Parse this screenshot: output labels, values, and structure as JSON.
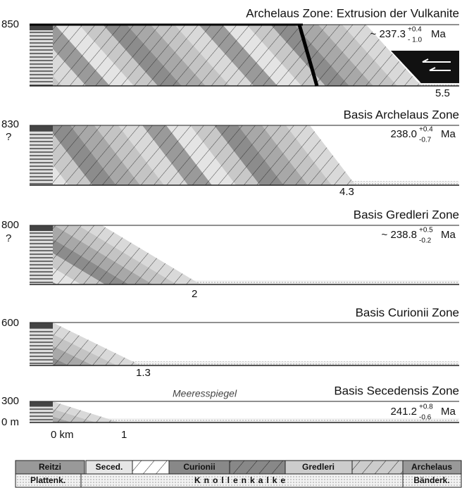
{
  "panels": [
    {
      "elevation": "850",
      "title": "Archelaus Zone: Extrusion der Vulkanite",
      "age": "~ 237.3",
      "age_plus": "+0.4",
      "age_minus": "- 1.0",
      "age_unit": "Ma",
      "distance": "5.5"
    },
    {
      "elevation": "830",
      "question": "?",
      "title": "Basis Archelaus Zone",
      "age": "238.0",
      "age_plus": "+0.4",
      "age_minus": "-0.7",
      "age_unit": "Ma",
      "distance": "4.3"
    },
    {
      "elevation": "800",
      "question": "?",
      "title": "Basis Gredleri Zone",
      "age": "~ 238.8",
      "age_plus": "+0.5",
      "age_minus": "-0.2",
      "age_unit": "Ma",
      "distance": "2"
    },
    {
      "elevation": "600",
      "title": "Basis Curionii Zone",
      "distance": "1.3"
    },
    {
      "elevation": "300",
      "sea_level_elevation": "0 m",
      "sea_level": "Meeresspiegel",
      "title": "Basis Secedensis Zone",
      "age": "241.2",
      "age_plus": "+0.8",
      "age_minus": "-0.6",
      "age_unit": "Ma",
      "origin": "0 km",
      "distance": "1"
    }
  ],
  "legend": {
    "zones": [
      "Reitzi",
      "Seced.",
      "Curionii",
      "Gredleri",
      "Archelaus"
    ],
    "facies": [
      "Plattenk.",
      "Knollenkalke",
      "Bänderk."
    ]
  }
}
